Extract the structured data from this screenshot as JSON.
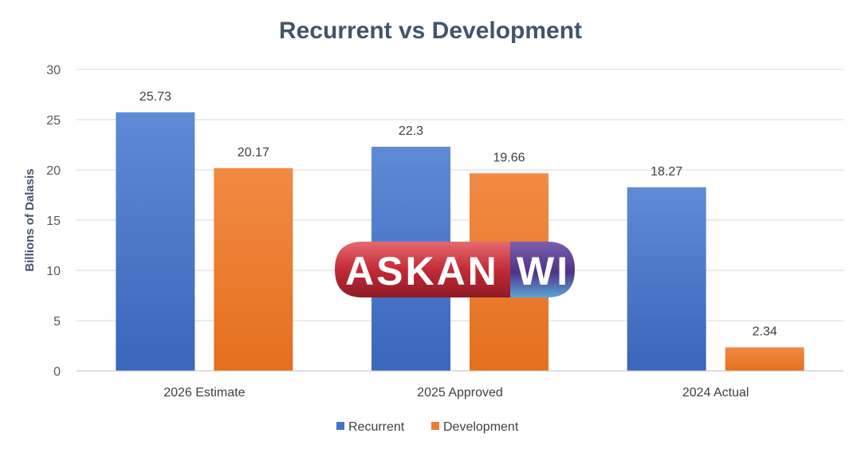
{
  "chart_data": {
    "type": "bar",
    "title": "Recurrent vs Development",
    "xlabel": "",
    "ylabel": "Billions of Dalasis",
    "ylim": [
      0,
      30
    ],
    "yticks": [
      0,
      5,
      10,
      15,
      20,
      25,
      30
    ],
    "grid": true,
    "legend_position": "bottom",
    "categories": [
      "2026 Estimate",
      "2025 Approved",
      "2024 Actual"
    ],
    "series": [
      {
        "name": "Recurrent",
        "values": [
          25.73,
          22.3,
          18.27
        ],
        "labels": [
          "25.73",
          "22.3",
          "18.27"
        ],
        "color": "#4472c4"
      },
      {
        "name": "Development",
        "values": [
          20.17,
          19.66,
          2.34
        ],
        "labels": [
          "20.17",
          "19.66",
          "2.34"
        ],
        "color": "#ed7d31"
      }
    ]
  },
  "watermark": {
    "left": "ASKAN",
    "right": "WI",
    "left_color": "#c8303a",
    "right_color": "#5a3f8e"
  }
}
